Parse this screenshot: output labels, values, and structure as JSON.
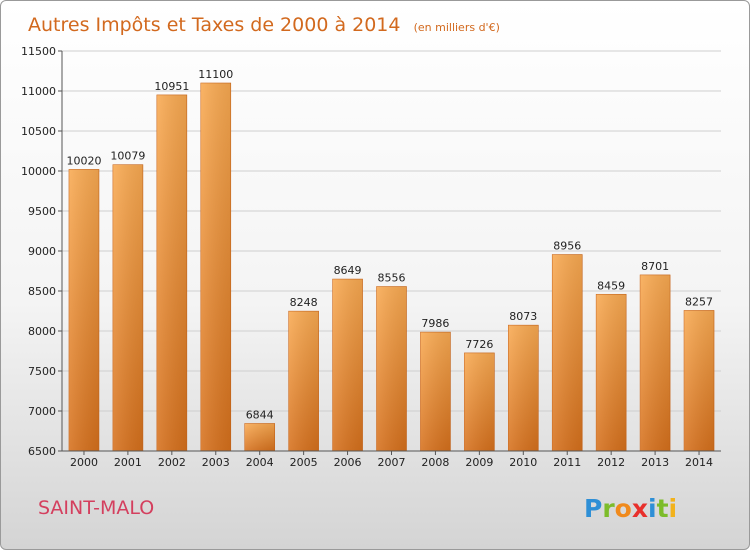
{
  "chart_data": {
    "type": "bar",
    "title": "Autres Impôts et Taxes de 2000 à 2014",
    "subtitle": "(en milliers d'€)",
    "categories": [
      "2000",
      "2001",
      "2002",
      "2003",
      "2004",
      "2005",
      "2006",
      "2007",
      "2008",
      "2009",
      "2010",
      "2011",
      "2012",
      "2013",
      "2014"
    ],
    "values": [
      10020,
      10079,
      10951,
      11100,
      6844,
      8248,
      8649,
      8556,
      7986,
      7726,
      8073,
      8956,
      8459,
      8701,
      8257
    ],
    "ylim": [
      6500,
      11500
    ],
    "yticks": [
      6500,
      7000,
      7500,
      8000,
      8500,
      9000,
      9500,
      10000,
      10500,
      11000,
      11500
    ],
    "grid": true,
    "legend": "none",
    "colors": {
      "bar_top": "#f8a84e",
      "bar_bottom": "#d9701a",
      "grid": "#cfcfcf"
    }
  },
  "footer": {
    "city": "SAINT-MALO",
    "logo_text": "Proxiti"
  }
}
